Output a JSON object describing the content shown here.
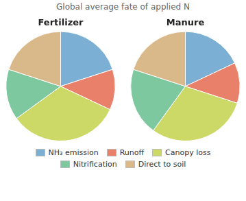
{
  "title": "Global average fate of applied N",
  "legend": "bottom",
  "chart_data": [
    {
      "type": "pie",
      "title": "Fertilizer",
      "categories": [
        "NH₃ emission",
        "Runoff",
        "Canopy loss",
        "Nitrification",
        "Direct to soil"
      ],
      "values": [
        20,
        12,
        33,
        15,
        20
      ],
      "colors": [
        "#7bafd4",
        "#e8806a",
        "#ccd966",
        "#7ec8a0",
        "#d9b98a"
      ]
    },
    {
      "type": "pie",
      "title": "Manure",
      "categories": [
        "NH₃ emission",
        "Runoff",
        "Canopy loss",
        "Nitrification",
        "Direct to soil"
      ],
      "values": [
        18,
        12,
        30,
        20,
        20
      ],
      "colors": [
        "#7bafd4",
        "#e8806a",
        "#ccd966",
        "#7ec8a0",
        "#d9b98a"
      ]
    }
  ]
}
